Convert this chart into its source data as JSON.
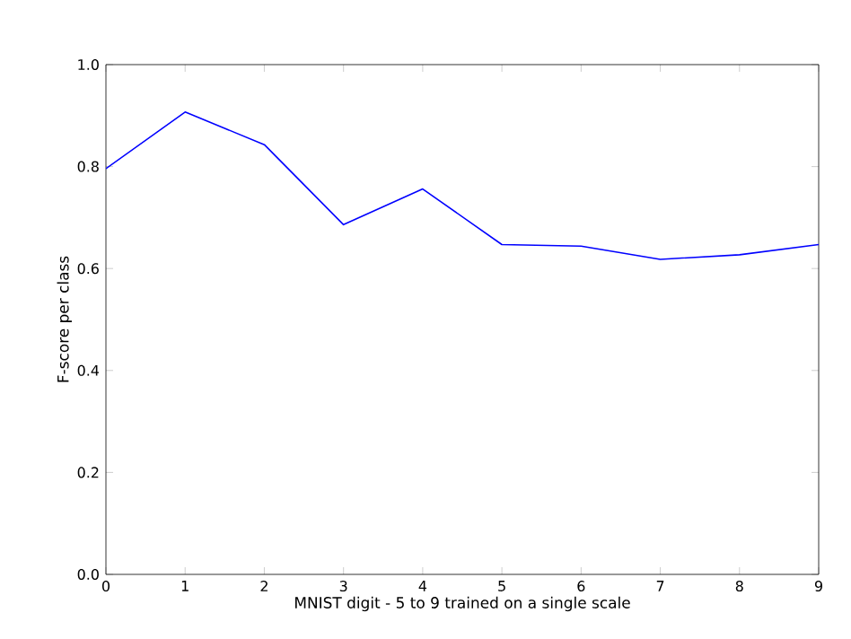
{
  "chart_data": {
    "type": "line",
    "xlabel": "MNIST digit - 5 to 9 trained on a single scale",
    "ylabel": "F-score per class",
    "x": [
      0,
      1,
      2,
      3,
      4,
      5,
      6,
      7,
      8,
      9
    ],
    "series": [
      {
        "color": "#0000ff",
        "values": [
          0.796,
          0.907,
          0.843,
          0.686,
          0.756,
          0.647,
          0.644,
          0.618,
          0.627,
          0.647
        ]
      }
    ],
    "xlim": [
      0,
      9
    ],
    "xticks": [
      0,
      1,
      2,
      3,
      4,
      5,
      6,
      7,
      8,
      9
    ],
    "ylim": [
      0,
      1
    ],
    "yticks": [
      {
        "value": 0,
        "label": "0.0"
      },
      {
        "value": 0.2,
        "label": "0.2"
      },
      {
        "value": 0.4,
        "label": "0.4"
      },
      {
        "value": 0.6,
        "label": "0.6"
      },
      {
        "value": 0.8,
        "label": "0.8"
      },
      {
        "value": 1,
        "label": "1.0"
      }
    ],
    "grid": false,
    "marker": "none",
    "line_style": "solid"
  }
}
